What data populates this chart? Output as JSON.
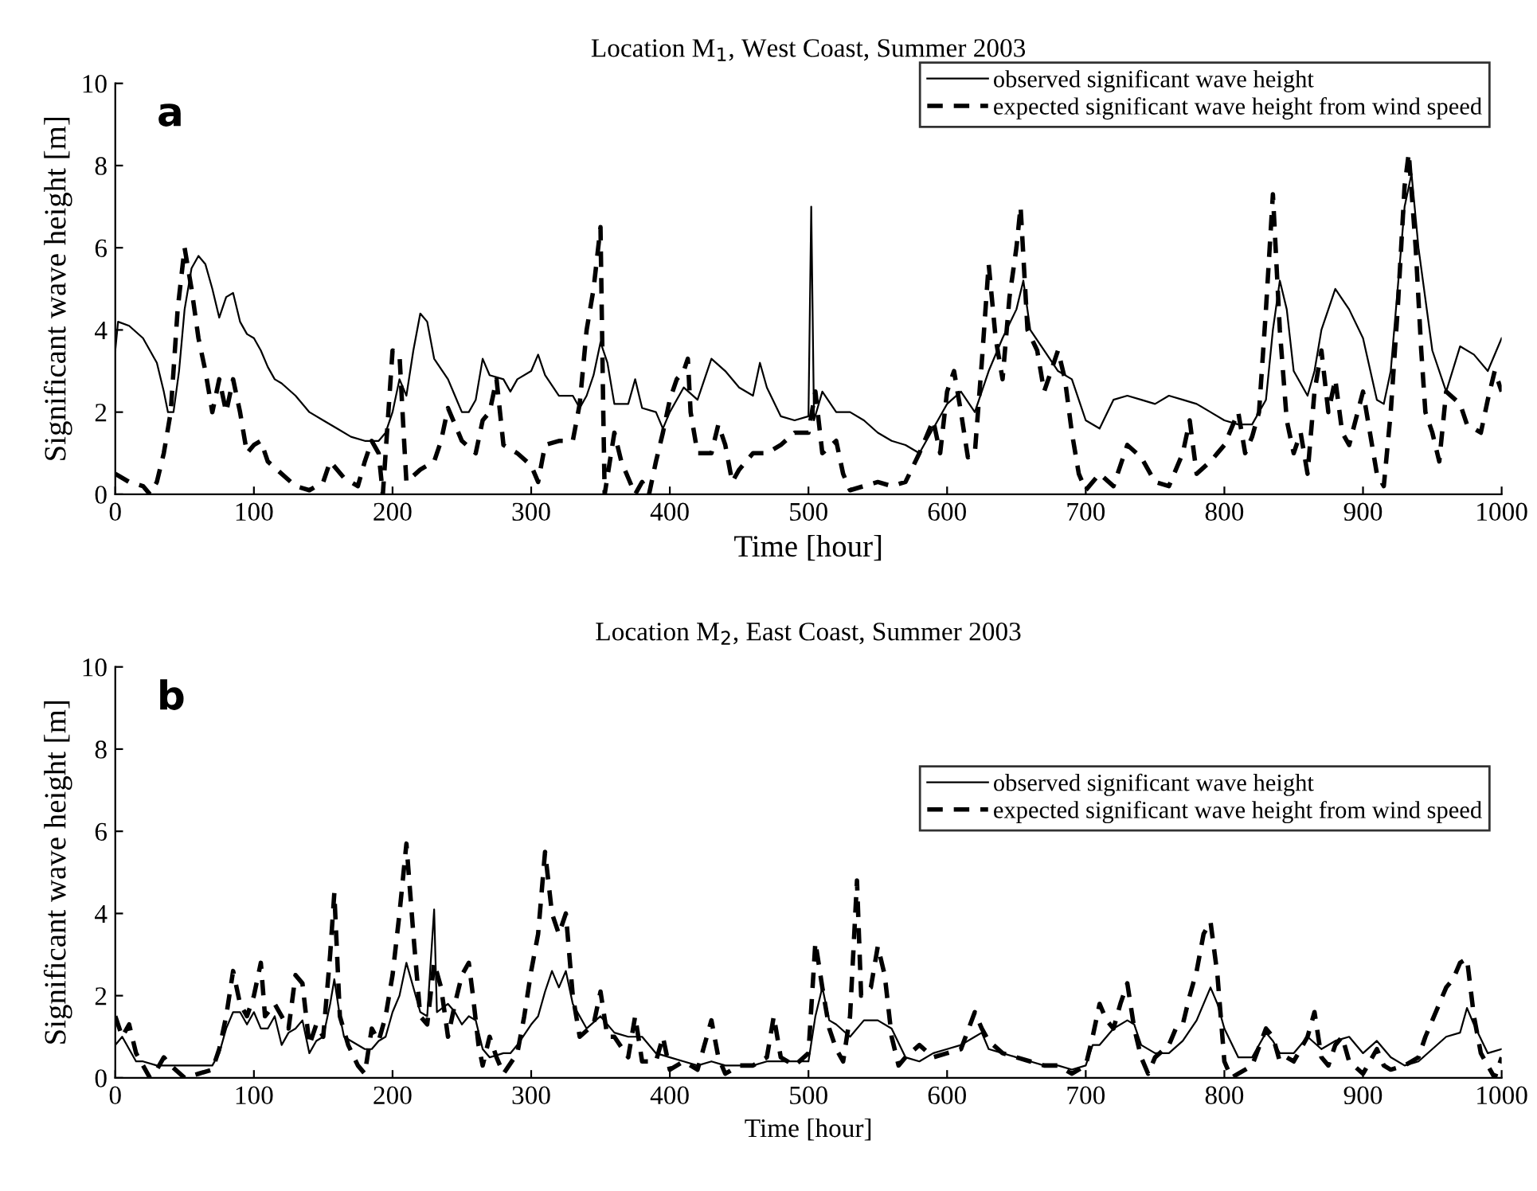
{
  "chart_data": [
    {
      "type": "line",
      "title": "Location M$_{1}$, West Coast, Summer 2003",
      "xlabel": "Time [hour]",
      "ylabel": "Significant wave height [m]",
      "annotations": [
        "a"
      ],
      "xlim": [
        0,
        1000
      ],
      "ylim": [
        0,
        10
      ],
      "xticks": [
        0,
        100,
        200,
        300,
        400,
        500,
        600,
        700,
        800,
        900,
        1000
      ],
      "yticks": [
        0,
        2,
        4,
        6,
        8,
        10
      ],
      "legend": "top right",
      "grid": false,
      "series": [
        {
          "name": "observed significant wave height",
          "color": "#000000",
          "line_style": "solid",
          "x": [
            0,
            2,
            10,
            20,
            30,
            35,
            38,
            42,
            46,
            50,
            55,
            60,
            65,
            70,
            75,
            80,
            85,
            90,
            95,
            100,
            105,
            110,
            115,
            120,
            130,
            140,
            150,
            160,
            170,
            180,
            190,
            195,
            200,
            205,
            210,
            215,
            220,
            225,
            230,
            240,
            245,
            250,
            255,
            260,
            265,
            270,
            280,
            285,
            290,
            300,
            305,
            310,
            320,
            330,
            335,
            340,
            345,
            350,
            355,
            360,
            370,
            375,
            380,
            390,
            395,
            400,
            410,
            420,
            430,
            440,
            450,
            460,
            465,
            470,
            480,
            490,
            500,
            502,
            504,
            510,
            520,
            530,
            540,
            550,
            560,
            570,
            580,
            590,
            600,
            610,
            620,
            630,
            640,
            650,
            655,
            660,
            670,
            680,
            690,
            700,
            710,
            720,
            730,
            740,
            750,
            760,
            770,
            780,
            790,
            800,
            810,
            820,
            830,
            835,
            840,
            845,
            850,
            860,
            865,
            870,
            880,
            890,
            900,
            910,
            915,
            920,
            930,
            935,
            940,
            950,
            960,
            970,
            980,
            990,
            1000
          ],
          "values": [
            3.5,
            4.2,
            4.1,
            3.8,
            3.2,
            2.5,
            2.0,
            2.0,
            3.0,
            4.5,
            5.5,
            5.8,
            5.6,
            5.0,
            4.3,
            4.8,
            4.9,
            4.2,
            3.9,
            3.8,
            3.5,
            3.1,
            2.8,
            2.7,
            2.4,
            2.0,
            1.8,
            1.6,
            1.4,
            1.3,
            1.3,
            1.5,
            2.0,
            2.8,
            2.4,
            3.5,
            4.4,
            4.2,
            3.3,
            2.8,
            2.4,
            2.0,
            2.0,
            2.3,
            3.3,
            2.9,
            2.8,
            2.5,
            2.8,
            3.0,
            3.4,
            2.9,
            2.4,
            2.4,
            2.1,
            2.4,
            2.9,
            3.7,
            3.2,
            2.2,
            2.2,
            2.8,
            2.1,
            2.0,
            1.6,
            2.0,
            2.6,
            2.3,
            3.3,
            3.0,
            2.6,
            2.4,
            3.2,
            2.6,
            1.9,
            1.8,
            1.9,
            7.0,
            1.8,
            2.5,
            2.0,
            2.0,
            1.8,
            1.5,
            1.3,
            1.2,
            1.0,
            1.6,
            2.2,
            2.5,
            2.0,
            3.0,
            3.8,
            4.5,
            5.2,
            4.0,
            3.5,
            3.0,
            2.8,
            1.8,
            1.6,
            2.3,
            2.4,
            2.3,
            2.2,
            2.4,
            2.3,
            2.2,
            2.0,
            1.8,
            1.7,
            1.7,
            2.3,
            4.0,
            5.2,
            4.5,
            3.0,
            2.4,
            3.0,
            4.0,
            5.0,
            4.5,
            3.8,
            2.3,
            2.2,
            3.0,
            7.0,
            7.8,
            6.0,
            3.5,
            2.5,
            3.6,
            3.4,
            3.0,
            3.8
          ]
        },
        {
          "name": "expected significant wave height from wind speed",
          "color": "#000000",
          "line_style": "dashed",
          "x": [
            0,
            10,
            20,
            25,
            30,
            35,
            40,
            45,
            50,
            55,
            60,
            65,
            70,
            75,
            80,
            85,
            90,
            95,
            100,
            105,
            110,
            120,
            130,
            140,
            150,
            155,
            165,
            175,
            180,
            185,
            190,
            193,
            196,
            200,
            205,
            208,
            210,
            220,
            230,
            235,
            240,
            250,
            260,
            265,
            270,
            275,
            280,
            290,
            300,
            305,
            310,
            320,
            330,
            335,
            340,
            345,
            350,
            352,
            353,
            360,
            365,
            370,
            375,
            380,
            385,
            390,
            395,
            400,
            405,
            410,
            413,
            415,
            420,
            430,
            435,
            440,
            445,
            450,
            460,
            470,
            480,
            490,
            500,
            505,
            510,
            520,
            525,
            530,
            540,
            550,
            560,
            570,
            580,
            590,
            595,
            600,
            605,
            610,
            615,
            620,
            625,
            630,
            635,
            640,
            645,
            650,
            653,
            658,
            665,
            670,
            680,
            685,
            690,
            695,
            700,
            710,
            720,
            730,
            740,
            750,
            760,
            770,
            775,
            780,
            790,
            800,
            810,
            815,
            820,
            825,
            830,
            835,
            840,
            845,
            850,
            855,
            860,
            865,
            870,
            875,
            880,
            885,
            890,
            900,
            905,
            910,
            915,
            920,
            925,
            930,
            933,
            938,
            942,
            945,
            950,
            955,
            960,
            970,
            975,
            985,
            990,
            995,
            1000
          ],
          "values": [
            0.5,
            0.3,
            0.2,
            0,
            0.3,
            1.0,
            2.0,
            4.5,
            6.0,
            5.0,
            3.8,
            3.0,
            2.0,
            2.8,
            2.0,
            2.8,
            2.0,
            1.0,
            1.2,
            1.3,
            0.8,
            0.5,
            0.2,
            0.1,
            0.3,
            0.8,
            0.4,
            0.2,
            0.8,
            1.3,
            1.0,
            0,
            1.5,
            3.5,
            3.4,
            1.5,
            0.3,
            0.6,
            0.8,
            1.3,
            2.1,
            1.3,
            1.0,
            1.8,
            2.0,
            2.8,
            1.2,
            1.0,
            0.7,
            0.3,
            1.2,
            1.3,
            1.3,
            2.2,
            4.0,
            5.0,
            6.5,
            2.0,
            0,
            1.5,
            0.8,
            0.4,
            0,
            0.3,
            0,
            0.8,
            1.5,
            2.3,
            2.8,
            3.0,
            3.3,
            2.0,
            1.0,
            1.0,
            1.7,
            1.2,
            0.3,
            0.6,
            1.0,
            1.0,
            1.2,
            1.5,
            1.5,
            2.5,
            1.0,
            1.3,
            0.5,
            0.1,
            0.2,
            0.3,
            0.2,
            0.3,
            1.0,
            1.8,
            1.0,
            2.5,
            3.0,
            2.0,
            0.9,
            1.0,
            3.2,
            5.6,
            3.8,
            2.8,
            4.8,
            6.0,
            7.0,
            4.0,
            3.5,
            2.5,
            3.5,
            2.8,
            1.5,
            0.5,
            0.1,
            0.5,
            0.2,
            1.2,
            0.9,
            0.3,
            0.2,
            1.0,
            1.8,
            0.5,
            0.8,
            1.2,
            2.0,
            1.0,
            1.4,
            2.0,
            4.5,
            7.3,
            4.0,
            1.8,
            1.0,
            1.5,
            0.5,
            2.5,
            3.5,
            2.0,
            2.8,
            1.5,
            1.2,
            2.5,
            1.5,
            0.5,
            0.2,
            2.0,
            4.5,
            7.5,
            8.3,
            6.0,
            3.5,
            2.0,
            1.5,
            0.8,
            2.5,
            2.2,
            1.7,
            1.5,
            2.3,
            3.0,
            2.5
          ]
        }
      ]
    },
    {
      "type": "line",
      "title": "Location M$_{2}$, East Coast, Summer 2003",
      "xlabel": "Time [hour]",
      "ylabel": "Significant wave height [m]",
      "annotations": [
        "b"
      ],
      "xlim": [
        0,
        1000
      ],
      "ylim": [
        0,
        10
      ],
      "xticks": [
        0,
        100,
        200,
        300,
        400,
        500,
        600,
        700,
        800,
        900,
        1000
      ],
      "yticks": [
        0,
        2,
        4,
        6,
        8,
        10
      ],
      "legend": "right",
      "grid": false,
      "series": [
        {
          "name": "observed significant wave height",
          "color": "#000000",
          "line_style": "solid",
          "x": [
            0,
            5,
            10,
            15,
            20,
            30,
            40,
            50,
            60,
            70,
            75,
            80,
            85,
            90,
            95,
            100,
            105,
            110,
            115,
            120,
            125,
            130,
            135,
            140,
            145,
            150,
            155,
            158,
            162,
            165,
            170,
            180,
            185,
            190,
            195,
            200,
            205,
            210,
            215,
            220,
            225,
            230,
            232,
            240,
            245,
            250,
            255,
            260,
            265,
            270,
            280,
            285,
            290,
            300,
            305,
            310,
            315,
            320,
            325,
            330,
            340,
            350,
            360,
            370,
            380,
            390,
            400,
            410,
            420,
            430,
            440,
            450,
            460,
            470,
            480,
            490,
            500,
            505,
            510,
            515,
            520,
            530,
            540,
            550,
            560,
            570,
            580,
            590,
            600,
            610,
            620,
            625,
            630,
            640,
            650,
            660,
            670,
            680,
            690,
            700,
            705,
            710,
            720,
            730,
            735,
            740,
            750,
            760,
            770,
            780,
            790,
            795,
            800,
            810,
            820,
            830,
            835,
            840,
            850,
            860,
            870,
            880,
            890,
            900,
            910,
            920,
            930,
            940,
            950,
            960,
            970,
            975,
            980,
            990,
            1000
          ],
          "values": [
            0.8,
            1.0,
            0.7,
            0.4,
            0.4,
            0.3,
            0.3,
            0.3,
            0.3,
            0.3,
            0.6,
            1.2,
            1.6,
            1.6,
            1.3,
            1.6,
            1.2,
            1.2,
            1.5,
            0.8,
            1.1,
            1.2,
            1.4,
            0.6,
            0.9,
            1.0,
            1.8,
            2.4,
            1.5,
            1.0,
            0.9,
            0.7,
            0.7,
            0.9,
            1.0,
            1.6,
            2.0,
            2.8,
            2.2,
            1.6,
            1.5,
            4.1,
            1.6,
            1.8,
            1.6,
            1.3,
            1.5,
            1.4,
            0.7,
            0.5,
            0.6,
            0.6,
            0.8,
            1.3,
            1.5,
            2.1,
            2.6,
            2.2,
            2.6,
            1.8,
            1.2,
            1.5,
            1.1,
            1.0,
            1.0,
            0.6,
            0.5,
            0.4,
            0.3,
            0.4,
            0.3,
            0.3,
            0.3,
            0.4,
            0.4,
            0.4,
            0.4,
            1.5,
            2.2,
            1.4,
            1.3,
            1.0,
            1.4,
            1.4,
            1.2,
            0.5,
            0.4,
            0.6,
            0.7,
            0.8,
            1.0,
            1.1,
            0.7,
            0.6,
            0.5,
            0.4,
            0.3,
            0.3,
            0.2,
            0.3,
            0.8,
            0.8,
            1.2,
            1.4,
            1.3,
            0.8,
            0.6,
            0.6,
            0.9,
            1.4,
            2.2,
            1.8,
            1.2,
            0.5,
            0.5,
            1.1,
            0.9,
            0.6,
            0.6,
            1.0,
            0.7,
            0.9,
            1.0,
            0.6,
            0.9,
            0.5,
            0.3,
            0.4,
            0.7,
            1.0,
            1.1,
            1.7,
            1.3,
            0.6,
            0.7
          ]
        },
        {
          "name": "expected significant wave height from wind speed",
          "color": "#000000",
          "line_style": "dashed",
          "x": [
            0,
            5,
            10,
            15,
            20,
            25,
            30,
            35,
            40,
            50,
            60,
            70,
            75,
            80,
            85,
            90,
            95,
            100,
            105,
            108,
            115,
            120,
            125,
            130,
            135,
            140,
            145,
            150,
            155,
            158,
            162,
            168,
            175,
            180,
            185,
            190,
            195,
            200,
            205,
            210,
            215,
            220,
            225,
            230,
            235,
            240,
            245,
            250,
            255,
            258,
            262,
            265,
            270,
            275,
            280,
            290,
            295,
            300,
            305,
            310,
            315,
            320,
            325,
            330,
            335,
            345,
            350,
            355,
            360,
            370,
            375,
            380,
            390,
            395,
            400,
            410,
            420,
            425,
            430,
            435,
            440,
            450,
            460,
            470,
            475,
            480,
            490,
            500,
            505,
            510,
            515,
            520,
            525,
            530,
            535,
            538,
            545,
            550,
            555,
            560,
            565,
            570,
            580,
            590,
            600,
            610,
            620,
            625,
            630,
            640,
            650,
            660,
            670,
            680,
            690,
            700,
            705,
            710,
            715,
            720,
            725,
            730,
            735,
            740,
            745,
            750,
            760,
            765,
            770,
            775,
            780,
            785,
            790,
            795,
            800,
            805,
            810,
            820,
            830,
            835,
            840,
            845,
            850,
            860,
            865,
            870,
            875,
            880,
            885,
            890,
            900,
            910,
            915,
            920,
            930,
            940,
            945,
            950,
            955,
            960,
            965,
            970,
            975,
            980,
            985,
            990,
            995,
            1000
          ],
          "values": [
            1.5,
            1.0,
            1.3,
            0.6,
            0.3,
            0,
            0.2,
            0.5,
            0.3,
            0,
            0.1,
            0.2,
            0.7,
            1.5,
            2.6,
            1.8,
            1.5,
            2.0,
            2.8,
            1.5,
            1.8,
            1.5,
            1.2,
            2.5,
            2.3,
            0.8,
            1.3,
            1.0,
            3.0,
            4.5,
            1.5,
            0.8,
            0.3,
            0.1,
            1.2,
            0.9,
            1.5,
            2.5,
            4.0,
            5.7,
            3.5,
            1.5,
            1.3,
            2.8,
            2.2,
            1.0,
            1.8,
            2.5,
            2.8,
            2.0,
            0.8,
            0.3,
            1.0,
            0.5,
            0.1,
            0.6,
            1.5,
            2.6,
            3.5,
            5.5,
            4.0,
            3.5,
            4.0,
            2.0,
            1.0,
            1.3,
            2.1,
            1.0,
            1.0,
            0.5,
            1.5,
            0.4,
            0.4,
            1.0,
            0.2,
            0.4,
            0.2,
            0.8,
            1.4,
            0.5,
            0.1,
            0.3,
            0.3,
            0.5,
            1.5,
            0.5,
            0.3,
            0.6,
            3.3,
            2.2,
            1.2,
            0.7,
            0.4,
            1.5,
            4.8,
            2.0,
            2.2,
            3.2,
            2.5,
            1.0,
            0.3,
            0.5,
            0.8,
            0.5,
            0.6,
            0.7,
            1.6,
            1.2,
            0.9,
            0.6,
            0.5,
            0.4,
            0.3,
            0.3,
            0.1,
            0.3,
            1.0,
            1.8,
            1.4,
            1.2,
            1.8,
            2.3,
            1.2,
            0.5,
            0.1,
            0.5,
            0.8,
            1.2,
            1.3,
            2.0,
            2.6,
            3.5,
            3.8,
            2.5,
            0.4,
            0,
            0.1,
            0.3,
            1.2,
            1.0,
            0.4,
            0.5,
            0.4,
            1.0,
            1.6,
            0.5,
            0.3,
            0.8,
            1.0,
            0.4,
            0.1,
            0.7,
            0.3,
            0.2,
            0.3,
            0.5,
            1.0,
            1.4,
            1.8,
            2.2,
            2.4,
            2.8,
            2.9,
            1.5,
            0.6,
            0.3,
            0,
            0.5
          ]
        }
      ]
    }
  ]
}
